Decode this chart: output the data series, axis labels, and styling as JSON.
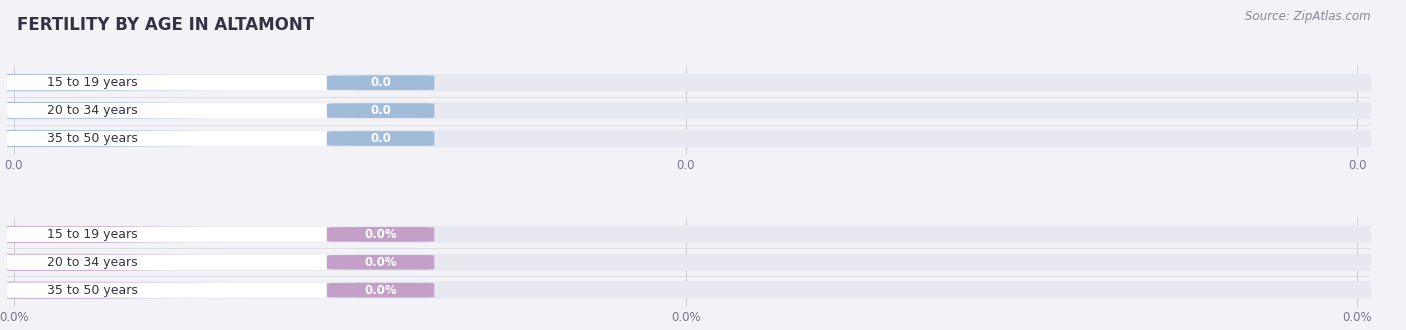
{
  "title": "FERTILITY BY AGE IN ALTAMONT",
  "source": "Source: ZipAtlas.com",
  "background_color": "#f2f2f7",
  "figure_bg": "#f2f2f7",
  "top_section": {
    "categories": [
      "15 to 19 years",
      "20 to 34 years",
      "35 to 50 years"
    ],
    "values": [
      0.0,
      0.0,
      0.0
    ],
    "bar_accent_color": "#8fafd4",
    "bar_bg_color": "#e8e8f0",
    "label_bg_color": "#ffffff",
    "badge_color": "#a0bcd8",
    "xticklabels": [
      "0.0",
      "0.0",
      "0.0"
    ]
  },
  "bottom_section": {
    "categories": [
      "15 to 19 years",
      "20 to 34 years",
      "35 to 50 years"
    ],
    "values": [
      0.0,
      0.0,
      0.0
    ],
    "bar_accent_color": "#b898c0",
    "bar_bg_color": "#e8e8f0",
    "label_bg_color": "#ffffff",
    "badge_color": "#c4a0c8",
    "xticklabels": [
      "0.0%",
      "0.0%",
      "0.0%"
    ]
  }
}
